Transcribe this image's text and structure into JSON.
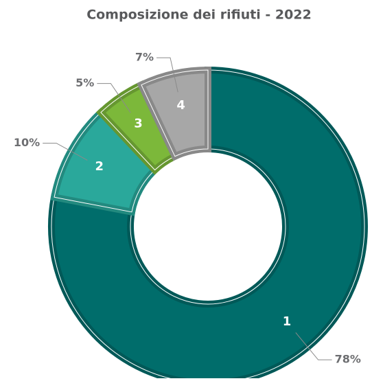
{
  "chart_data": {
    "type": "donut",
    "title": "Composizione dei rifiuti - 2022",
    "categories": [
      "1",
      "2",
      "3",
      "4"
    ],
    "values": [
      78,
      10,
      5,
      7
    ],
    "value_labels": [
      "78%",
      "10%",
      "5%",
      "7%"
    ],
    "colors": [
      "#006d6b",
      "#2aa89b",
      "#7cb83a",
      "#a7a7a7"
    ]
  }
}
